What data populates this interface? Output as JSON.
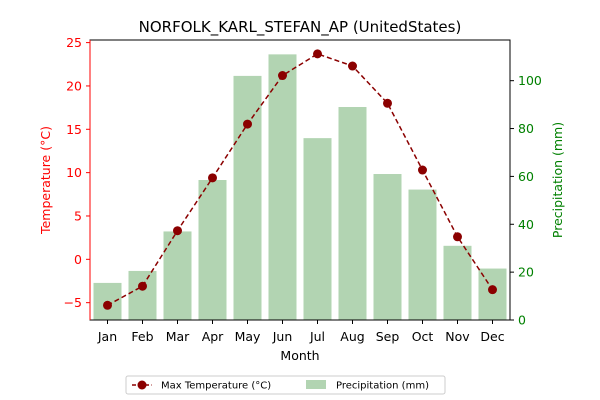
{
  "chart_data": {
    "type": "bar+line",
    "title": "NORFOLK_KARL_STEFAN_AP (UnitedStates)",
    "xlabel": "Month",
    "categories": [
      "Jan",
      "Feb",
      "Mar",
      "Apr",
      "May",
      "Jun",
      "Jul",
      "Aug",
      "Sep",
      "Oct",
      "Nov",
      "Dec"
    ],
    "left_axis": {
      "label": "Temperature (°C)",
      "color": "#ff0000",
      "ylim": [
        -7,
        25.3
      ],
      "ticks": [
        -5,
        0,
        5,
        10,
        15,
        20,
        25
      ],
      "tick_labels": [
        "−5",
        "0",
        "5",
        "10",
        "15",
        "20",
        "25"
      ]
    },
    "right_axis": {
      "label": "Precipitation (mm)",
      "color": "#008000",
      "ylim": [
        0,
        117
      ],
      "ticks": [
        0,
        20,
        40,
        60,
        80,
        100
      ],
      "tick_labels": [
        "0",
        "20",
        "40",
        "60",
        "80",
        "100"
      ]
    },
    "series": [
      {
        "name": "Max Temperature (°C)",
        "type": "line",
        "axis": "left",
        "color": "#8b0000",
        "values": [
          -5.3,
          -3.1,
          3.3,
          9.4,
          15.6,
          21.2,
          23.7,
          22.3,
          18.0,
          10.3,
          2.6,
          -3.5
        ]
      },
      {
        "name": "Precipitation (mm)",
        "type": "bar",
        "axis": "right",
        "color": "#2e8b2e",
        "values": [
          15.5,
          20.5,
          37.0,
          58.5,
          102.0,
          111.0,
          76.0,
          89.0,
          61.0,
          54.5,
          31.0,
          21.5
        ]
      }
    ],
    "grid": false,
    "legend_position": "bottom-center"
  }
}
